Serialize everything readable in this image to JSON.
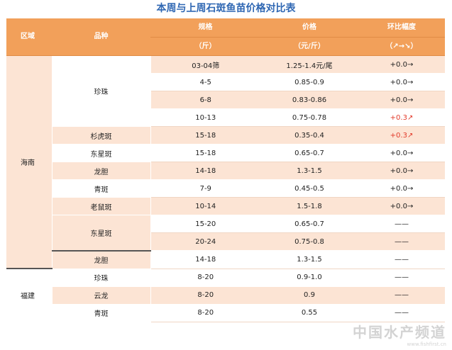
{
  "title": "本周与上周石斑鱼苗价格对比表",
  "headers": {
    "region": "区域",
    "variety": "品种",
    "spec": "规格",
    "spec_unit": "（斤）",
    "price": "价格",
    "price_unit": "（元/斤）",
    "change": "环比幅度",
    "change_unit": "（↗→↘）"
  },
  "regions": [
    "海南",
    "福建"
  ],
  "varieties": [
    "珍珠",
    "杉虎斑",
    "东星斑",
    "龙胆",
    "青斑",
    "老鼠斑",
    "东星斑",
    "龙胆",
    "珍珠",
    "云龙",
    "青斑"
  ],
  "rows": [
    {
      "spec": "03-04筛",
      "price": "1.25-1.4元/尾",
      "change": "+0.0→"
    },
    {
      "spec": "4-5",
      "price": "0.85-0.9",
      "change": "+0.0→"
    },
    {
      "spec": "6-8",
      "price": "0.83-0.86",
      "change": "+0.0→"
    },
    {
      "spec": "10-13",
      "price": "0.75-0.78",
      "change": "+0.3↗"
    },
    {
      "spec": "15-18",
      "price": "0.35-0.4",
      "change": "+0.3↗"
    },
    {
      "spec": "15-18",
      "price": "0.65-0.7",
      "change": "+0.0→"
    },
    {
      "spec": "14-18",
      "price": "1.3-1.5",
      "change": "+0.0→"
    },
    {
      "spec": "7-9",
      "price": "0.45-0.5",
      "change": "+0.0→"
    },
    {
      "spec": "10-14",
      "price": "1.5-1.8",
      "change": "+0.0→"
    },
    {
      "spec": "15-20",
      "price": "0.65-0.7",
      "change": "——"
    },
    {
      "spec": "20-24",
      "price": "0.75-0.8",
      "change": "——"
    },
    {
      "spec": "14-18",
      "price": "1.3-1.5",
      "change": "——"
    },
    {
      "spec": "8-20",
      "price": "0.9-1.0",
      "change": "——"
    },
    {
      "spec": "8-20",
      "price": "0.9",
      "change": "——"
    },
    {
      "spec": "8-20",
      "price": "0.55",
      "change": "——"
    }
  ],
  "watermark": "中国水产频道",
  "watermark_url": "www.fishfirst.cn",
  "colors": {
    "header": "#f2a05a",
    "peach": "#fce4d4",
    "title": "#2f67b3",
    "up": "#e23a2a"
  }
}
